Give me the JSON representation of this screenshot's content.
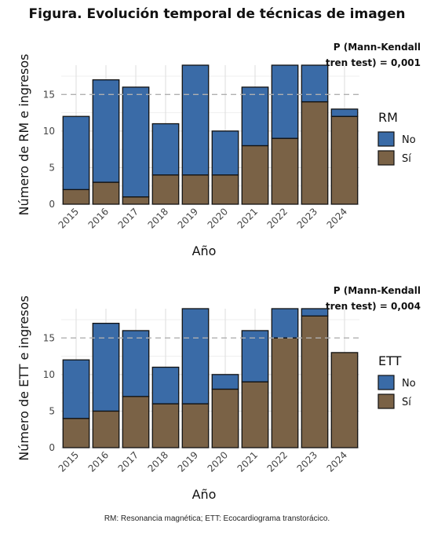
{
  "title": "Figura. Evolución temporal de técnicas de imagen",
  "footnote": "RM: Resonancia magnética; ETT: Ecocardiograma transtorácico.",
  "colors": {
    "no": "#3A6BA7",
    "si": "#7A6246",
    "grid_major": "#dedede",
    "grid_minor": "#efefef",
    "ref_line": "#b0b0b0"
  },
  "chart_data": [
    {
      "type": "bar",
      "stacked": true,
      "categories": [
        "2015",
        "2016",
        "2017",
        "2018",
        "2019",
        "2020",
        "2021",
        "2022",
        "2023",
        "2024"
      ],
      "series": [
        {
          "name": "Sí",
          "values": [
            2,
            3,
            1,
            4,
            4,
            4,
            8,
            9,
            14,
            12
          ]
        },
        {
          "name": "No",
          "values": [
            10,
            14,
            15,
            7,
            15,
            6,
            8,
            10,
            5,
            1
          ]
        }
      ],
      "xlabel": "Año",
      "ylabel": "Número de RM e ingresos",
      "ylim": [
        0,
        19
      ],
      "yticks": [
        0,
        5,
        10,
        15
      ],
      "reference_line": 15,
      "legend_title": "RM",
      "legend": [
        "No",
        "Sí"
      ],
      "legend_position": "right",
      "annotation": [
        "P (Mann-Kendall",
        "tren test) = 0,001"
      ],
      "grid": true
    },
    {
      "type": "bar",
      "stacked": true,
      "categories": [
        "2015",
        "2016",
        "2017",
        "2018",
        "2019",
        "2020",
        "2021",
        "2022",
        "2023",
        "2024"
      ],
      "series": [
        {
          "name": "Sí",
          "values": [
            4,
            5,
            7,
            6,
            6,
            8,
            9,
            15,
            18,
            13
          ]
        },
        {
          "name": "No",
          "values": [
            8,
            12,
            9,
            5,
            13,
            2,
            7,
            4,
            1,
            0
          ]
        }
      ],
      "xlabel": "Año",
      "ylabel": "Número de ETT e ingresos",
      "ylim": [
        0,
        19
      ],
      "yticks": [
        0,
        5,
        10,
        15
      ],
      "reference_line": 15,
      "legend_title": "ETT",
      "legend": [
        "No",
        "Sí"
      ],
      "legend_position": "right",
      "annotation": [
        "P (Mann-Kendall",
        "tren test) = 0,004"
      ],
      "grid": true
    }
  ]
}
